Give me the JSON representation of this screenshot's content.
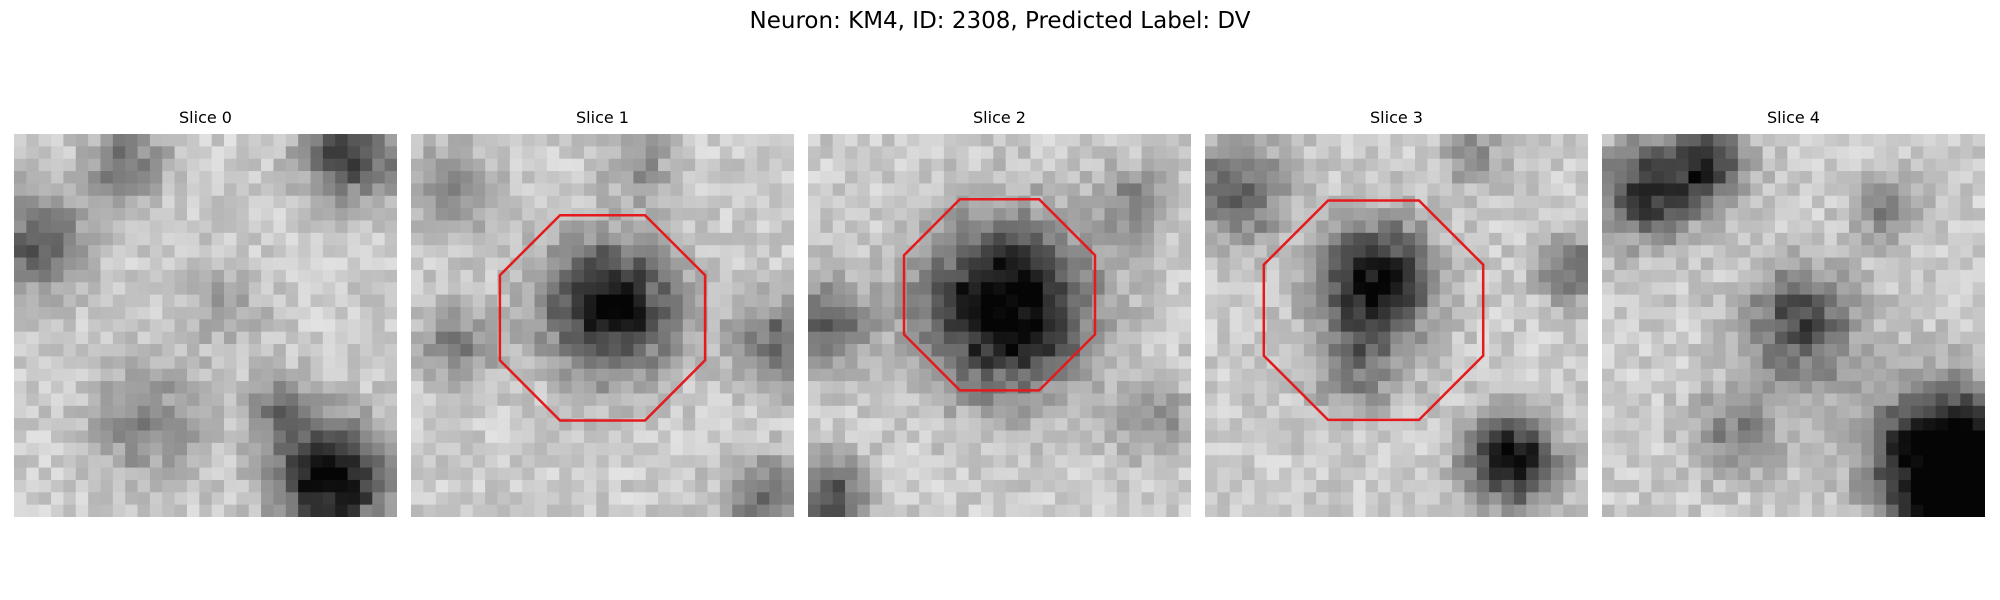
{
  "figure": {
    "title": "Neuron: KM4, ID: 2308, Predicted Label: DV"
  },
  "colors": {
    "roi_outline": "#e41a1c",
    "background": "#ffffff"
  },
  "slices": [
    {
      "label": "Slice 0",
      "roi": false
    },
    {
      "label": "Slice 1",
      "roi": true
    },
    {
      "label": "Slice 2",
      "roi": true
    },
    {
      "label": "Slice 3",
      "roi": true
    },
    {
      "label": "Slice 4",
      "roi": false
    }
  ]
}
